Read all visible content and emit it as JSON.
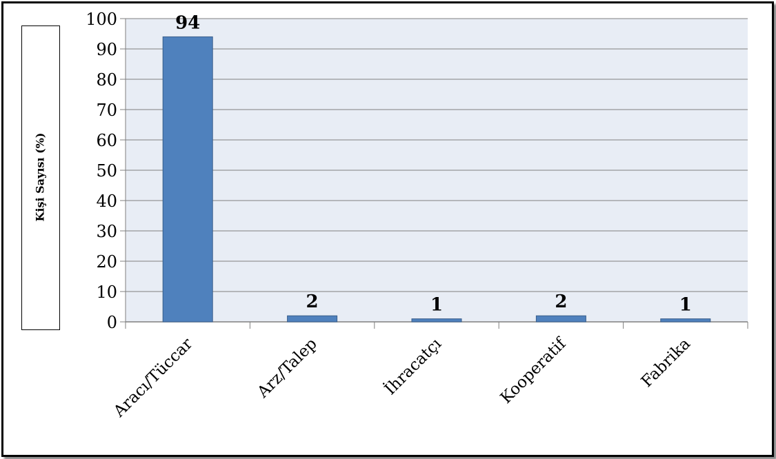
{
  "chart_data": {
    "type": "bar",
    "categories": [
      "Aracı/Tüccar",
      "Arz/Talep",
      "İhracatçı",
      "Kooperatif",
      "Fabrika"
    ],
    "values": [
      94,
      2,
      1,
      2,
      1
    ],
    "data_labels": [
      "94",
      "2",
      "1",
      "2",
      "1"
    ],
    "title": "",
    "xlabel": "",
    "ylabel": "Kişi Sayısı (%)",
    "ylim": [
      0,
      100
    ],
    "yticks": [
      "0",
      "10",
      "20",
      "30",
      "40",
      "50",
      "60",
      "70",
      "80",
      "90",
      "100"
    ],
    "grid": true,
    "legend": "none",
    "colors": {
      "bar_fill": "#4F81BD",
      "bar_stroke": "#385D8A",
      "plot_background": "#E8EDF5",
      "gridline": "#7F7F7F"
    }
  }
}
